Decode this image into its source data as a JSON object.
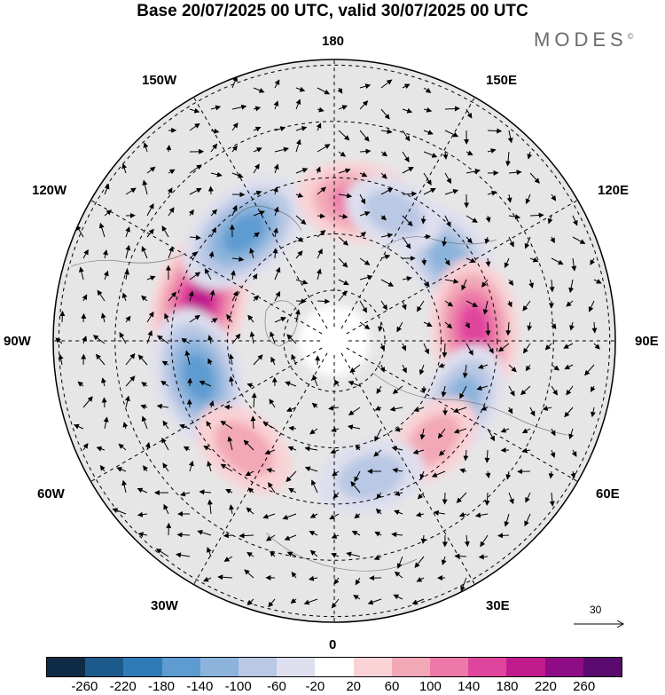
{
  "title": "Base 20/07/2025 00 UTC, valid 30/07/2025 00 UTC",
  "brand": "MODES",
  "brand_mark": "©",
  "longitude_labels": {
    "top": "180",
    "bottom": "0",
    "left": "90W",
    "right": "90E",
    "upper_left_150": "150W",
    "upper_right_150": "150E",
    "upper_left_120": "120W",
    "upper_right_120": "120E",
    "lower_left_60": "60W",
    "lower_right_60": "60E",
    "lower_left_30": "30W",
    "lower_right_30": "30E"
  },
  "vector_reference": {
    "label": "30",
    "icon": "arrow-right-icon"
  },
  "colorbar": {
    "colors": [
      "#0f2b45",
      "#1b5a8a",
      "#2f7bb8",
      "#5d9bd0",
      "#8bb3dc",
      "#b9c8e4",
      "#dedfee",
      "#ffffff",
      "#f9d2d6",
      "#f2a8b6",
      "#ec79a8",
      "#e0459e",
      "#c01a8d",
      "#8e0c86",
      "#5a0a6e"
    ],
    "labels": [
      "-260",
      "-220",
      "-180",
      "-140",
      "-100",
      "-60",
      "-20",
      "20",
      "60",
      "100",
      "140",
      "180",
      "220",
      "260"
    ]
  },
  "chart_data": {
    "type": "heatmap",
    "projection": "north-polar-stereographic",
    "field": "anomaly with wind vectors",
    "base_time": "20/07/2025 00 UTC",
    "valid_time": "30/07/2025 00 UTC",
    "contour_levels": [
      -260,
      -220,
      -180,
      -140,
      -100,
      -60,
      -20,
      20,
      60,
      100,
      140,
      180,
      220,
      260
    ],
    "vector_reference_magnitude": 30,
    "anomaly_centers": [
      {
        "sign": "positive",
        "approx_lon": "105W",
        "approx_strength": 200
      },
      {
        "sign": "negative",
        "approx_lon": "75W",
        "approx_strength": -180
      },
      {
        "sign": "negative",
        "approx_lon": "140W",
        "approx_strength": -180
      },
      {
        "sign": "positive",
        "approx_lon": "170E",
        "approx_strength": 140
      },
      {
        "sign": "negative",
        "approx_lon": "125E",
        "approx_strength": -140
      },
      {
        "sign": "positive",
        "approx_lon": "95E",
        "approx_strength": 180
      },
      {
        "sign": "negative",
        "approx_lon": "65E",
        "approx_strength": -120
      },
      {
        "sign": "positive",
        "approx_lon": "45E",
        "approx_strength": 80
      },
      {
        "sign": "negative",
        "approx_lon": "15E",
        "approx_strength": -100
      },
      {
        "sign": "positive",
        "approx_lon": "40W",
        "approx_strength": 100
      },
      {
        "sign": "negative",
        "approx_lon": "155E",
        "approx_strength": -80
      }
    ]
  }
}
